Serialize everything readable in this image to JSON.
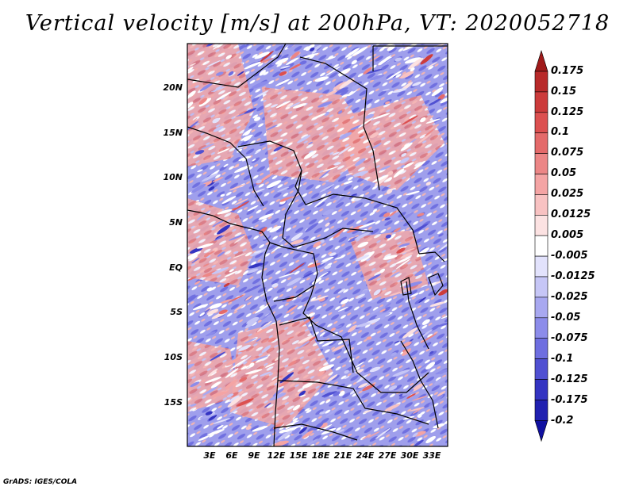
{
  "title": "Vertical velocity [m/s] at 200hPa, VT: 2020052718",
  "footer": "GrADS: IGES/COLA",
  "map": {
    "lat_range": [
      -20,
      25
    ],
    "lon_range": [
      0,
      35
    ],
    "lat_ticks": [
      "20N",
      "15N",
      "10N",
      "5N",
      "EQ",
      "5S",
      "10S",
      "15S"
    ],
    "lon_ticks": [
      "3E",
      "6E",
      "9E",
      "12E",
      "15E",
      "18E",
      "21E",
      "24E",
      "27E",
      "30E",
      "33E"
    ]
  },
  "colorbar": {
    "labels": [
      "0.175",
      "0.15",
      "0.125",
      "0.1",
      "0.075",
      "0.05",
      "0.025",
      "0.0125",
      "0.005",
      "-0.005",
      "-0.0125",
      "-0.025",
      "-0.05",
      "-0.075",
      "-0.1",
      "-0.125",
      "-0.175",
      "-0.2"
    ],
    "colors": [
      "#a01a1a",
      "#b82a2a",
      "#cc3b3b",
      "#dc5050",
      "#e46a6a",
      "#ec8686",
      "#f4a4a4",
      "#f8c2c2",
      "#fce2e2",
      "#ffffff",
      "#e2e2fc",
      "#c6c6f6",
      "#a8a8f0",
      "#8c8cea",
      "#6e6ee0",
      "#5050d2",
      "#3434c2",
      "#2020b0",
      "#1010a0"
    ]
  }
}
